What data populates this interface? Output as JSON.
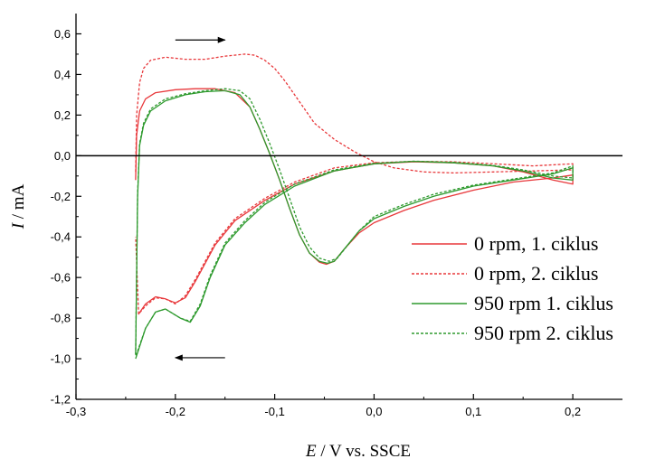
{
  "chart_data": {
    "type": "line",
    "xlabel": {
      "var": "E",
      "rest": " / V vs. SSCE"
    },
    "ylabel": {
      "var": "I",
      "rest": " / mA"
    },
    "xlim": [
      -0.3,
      0.25
    ],
    "ylim": [
      -1.2,
      0.7
    ],
    "xticks": [
      -0.3,
      -0.2,
      -0.1,
      0.0,
      0.1,
      0.2
    ],
    "xtick_labels": [
      "-0,3",
      "-0,2",
      "-0,1",
      "0,0",
      "0,1",
      "0,2"
    ],
    "yticks": [
      -1.2,
      -1.0,
      -0.8,
      -0.6,
      -0.4,
      -0.2,
      0.0,
      0.2,
      0.4,
      0.6
    ],
    "ytick_labels": [
      "-1,2",
      "-1,0",
      "-0,8",
      "-0,6",
      "-0,4",
      "-0,2",
      "0,0",
      "0,2",
      "0,4",
      "0,6"
    ],
    "zero_line": 0.0,
    "grid": false,
    "legend_position": "right-center",
    "arrows": [
      {
        "from": [
          -0.2,
          0.57
        ],
        "to": [
          -0.15,
          0.57
        ]
      },
      {
        "from": [
          -0.15,
          -0.995
        ],
        "to": [
          -0.2,
          -0.995
        ]
      }
    ],
    "series": [
      {
        "name": "0 rpm, 1. ciklus",
        "color": "#e8383b",
        "dash": "solid",
        "points": [
          [
            -0.24,
            -0.12
          ],
          [
            -0.239,
            0.1
          ],
          [
            -0.236,
            0.22
          ],
          [
            -0.23,
            0.28
          ],
          [
            -0.22,
            0.31
          ],
          [
            -0.2,
            0.325
          ],
          [
            -0.18,
            0.33
          ],
          [
            -0.16,
            0.33
          ],
          [
            -0.14,
            0.31
          ],
          [
            -0.125,
            0.24
          ],
          [
            -0.115,
            0.13
          ],
          [
            -0.105,
            0.01
          ],
          [
            -0.095,
            -0.12
          ],
          [
            -0.085,
            -0.26
          ],
          [
            -0.075,
            -0.39
          ],
          [
            -0.065,
            -0.48
          ],
          [
            -0.055,
            -0.525
          ],
          [
            -0.048,
            -0.535
          ],
          [
            -0.04,
            -0.52
          ],
          [
            -0.03,
            -0.46
          ],
          [
            -0.015,
            -0.38
          ],
          [
            0.0,
            -0.33
          ],
          [
            0.03,
            -0.27
          ],
          [
            0.06,
            -0.22
          ],
          [
            0.1,
            -0.17
          ],
          [
            0.14,
            -0.13
          ],
          [
            0.18,
            -0.11
          ],
          [
            0.2,
            -0.095
          ],
          [
            0.2,
            -0.14
          ],
          [
            0.18,
            -0.12
          ],
          [
            0.15,
            -0.08
          ],
          [
            0.12,
            -0.05
          ],
          [
            0.08,
            -0.035
          ],
          [
            0.04,
            -0.03
          ],
          [
            0.0,
            -0.04
          ],
          [
            -0.04,
            -0.075
          ],
          [
            -0.08,
            -0.14
          ],
          [
            -0.11,
            -0.22
          ],
          [
            -0.14,
            -0.32
          ],
          [
            -0.16,
            -0.44
          ],
          [
            -0.17,
            -0.53
          ],
          [
            -0.18,
            -0.62
          ],
          [
            -0.19,
            -0.7
          ],
          [
            -0.2,
            -0.725
          ],
          [
            -0.21,
            -0.705
          ],
          [
            -0.22,
            -0.695
          ],
          [
            -0.23,
            -0.73
          ],
          [
            -0.237,
            -0.78
          ]
        ]
      },
      {
        "name": "0 rpm, 2. ciklus",
        "color": "#e8383b",
        "dash": "dashed",
        "points": [
          [
            -0.24,
            -0.08
          ],
          [
            -0.239,
            0.2
          ],
          [
            -0.236,
            0.36
          ],
          [
            -0.232,
            0.43
          ],
          [
            -0.225,
            0.47
          ],
          [
            -0.21,
            0.485
          ],
          [
            -0.19,
            0.475
          ],
          [
            -0.17,
            0.475
          ],
          [
            -0.15,
            0.49
          ],
          [
            -0.13,
            0.5
          ],
          [
            -0.12,
            0.495
          ],
          [
            -0.11,
            0.47
          ],
          [
            -0.1,
            0.43
          ],
          [
            -0.09,
            0.37
          ],
          [
            -0.08,
            0.3
          ],
          [
            -0.07,
            0.23
          ],
          [
            -0.06,
            0.16
          ],
          [
            -0.04,
            0.08
          ],
          [
            -0.02,
            0.02
          ],
          [
            0.0,
            -0.03
          ],
          [
            0.02,
            -0.06
          ],
          [
            0.05,
            -0.08
          ],
          [
            0.08,
            -0.085
          ],
          [
            0.12,
            -0.08
          ],
          [
            0.16,
            -0.075
          ],
          [
            0.2,
            -0.07
          ],
          [
            0.2,
            -0.04
          ],
          [
            0.16,
            -0.05
          ],
          [
            0.12,
            -0.04
          ],
          [
            0.08,
            -0.03
          ],
          [
            0.04,
            -0.028
          ],
          [
            0.0,
            -0.035
          ],
          [
            -0.04,
            -0.06
          ],
          [
            -0.08,
            -0.13
          ],
          [
            -0.11,
            -0.21
          ],
          [
            -0.14,
            -0.31
          ],
          [
            -0.16,
            -0.43
          ],
          [
            -0.17,
            -0.52
          ],
          [
            -0.18,
            -0.61
          ],
          [
            -0.19,
            -0.69
          ],
          [
            -0.2,
            -0.73
          ],
          [
            -0.21,
            -0.705
          ],
          [
            -0.22,
            -0.7
          ],
          [
            -0.23,
            -0.74
          ],
          [
            -0.237,
            -0.78
          ],
          [
            -0.24,
            -0.4
          ]
        ]
      },
      {
        "name": "950 rpm 1. ciklus",
        "color": "#2e9a2e",
        "dash": "solid",
        "points": [
          [
            -0.24,
            -0.98
          ],
          [
            -0.238,
            -0.2
          ],
          [
            -0.236,
            0.05
          ],
          [
            -0.232,
            0.15
          ],
          [
            -0.225,
            0.22
          ],
          [
            -0.21,
            0.27
          ],
          [
            -0.19,
            0.3
          ],
          [
            -0.17,
            0.315
          ],
          [
            -0.15,
            0.32
          ],
          [
            -0.135,
            0.3
          ],
          [
            -0.125,
            0.24
          ],
          [
            -0.115,
            0.13
          ],
          [
            -0.105,
            0.01
          ],
          [
            -0.095,
            -0.12
          ],
          [
            -0.085,
            -0.26
          ],
          [
            -0.075,
            -0.39
          ],
          [
            -0.065,
            -0.48
          ],
          [
            -0.055,
            -0.52
          ],
          [
            -0.047,
            -0.53
          ],
          [
            -0.04,
            -0.52
          ],
          [
            -0.03,
            -0.46
          ],
          [
            -0.015,
            -0.37
          ],
          [
            0.0,
            -0.31
          ],
          [
            0.03,
            -0.25
          ],
          [
            0.06,
            -0.2
          ],
          [
            0.1,
            -0.15
          ],
          [
            0.14,
            -0.12
          ],
          [
            0.18,
            -0.09
          ],
          [
            0.2,
            -0.06
          ],
          [
            0.2,
            -0.12
          ],
          [
            0.18,
            -0.11
          ],
          [
            0.15,
            -0.075
          ],
          [
            0.12,
            -0.05
          ],
          [
            0.08,
            -0.035
          ],
          [
            0.04,
            -0.028
          ],
          [
            0.0,
            -0.04
          ],
          [
            -0.04,
            -0.075
          ],
          [
            -0.08,
            -0.15
          ],
          [
            -0.11,
            -0.24
          ],
          [
            -0.13,
            -0.33
          ],
          [
            -0.15,
            -0.44
          ],
          [
            -0.165,
            -0.6
          ],
          [
            -0.175,
            -0.74
          ],
          [
            -0.185,
            -0.82
          ],
          [
            -0.195,
            -0.8
          ],
          [
            -0.21,
            -0.755
          ],
          [
            -0.22,
            -0.77
          ],
          [
            -0.23,
            -0.85
          ],
          [
            -0.24,
            -1.0
          ]
        ]
      },
      {
        "name": "950 rpm 2. ciklus",
        "color": "#2e9a2e",
        "dash": "dashed",
        "points": [
          [
            -0.24,
            -0.98
          ],
          [
            -0.238,
            -0.18
          ],
          [
            -0.236,
            0.06
          ],
          [
            -0.232,
            0.16
          ],
          [
            -0.225,
            0.23
          ],
          [
            -0.21,
            0.28
          ],
          [
            -0.19,
            0.305
          ],
          [
            -0.17,
            0.32
          ],
          [
            -0.15,
            0.33
          ],
          [
            -0.135,
            0.32
          ],
          [
            -0.125,
            0.28
          ],
          [
            -0.115,
            0.18
          ],
          [
            -0.105,
            0.06
          ],
          [
            -0.095,
            -0.07
          ],
          [
            -0.085,
            -0.21
          ],
          [
            -0.075,
            -0.35
          ],
          [
            -0.065,
            -0.45
          ],
          [
            -0.055,
            -0.505
          ],
          [
            -0.045,
            -0.52
          ],
          [
            -0.037,
            -0.505
          ],
          [
            -0.028,
            -0.45
          ],
          [
            -0.015,
            -0.37
          ],
          [
            0.0,
            -0.3
          ],
          [
            0.03,
            -0.24
          ],
          [
            0.06,
            -0.19
          ],
          [
            0.1,
            -0.145
          ],
          [
            0.14,
            -0.115
          ],
          [
            0.18,
            -0.085
          ],
          [
            0.2,
            -0.05
          ],
          [
            0.2,
            -0.11
          ],
          [
            0.18,
            -0.1
          ],
          [
            0.15,
            -0.07
          ],
          [
            0.12,
            -0.048
          ],
          [
            0.08,
            -0.033
          ],
          [
            0.04,
            -0.027
          ],
          [
            0.0,
            -0.038
          ],
          [
            -0.04,
            -0.07
          ],
          [
            -0.08,
            -0.14
          ],
          [
            -0.11,
            -0.23
          ],
          [
            -0.13,
            -0.32
          ],
          [
            -0.15,
            -0.43
          ],
          [
            -0.165,
            -0.59
          ],
          [
            -0.175,
            -0.73
          ],
          [
            -0.185,
            -0.815
          ],
          [
            -0.195,
            -0.8
          ],
          [
            -0.21,
            -0.755
          ],
          [
            -0.22,
            -0.77
          ],
          [
            -0.23,
            -0.85
          ],
          [
            -0.24,
            -0.99
          ]
        ]
      }
    ]
  }
}
